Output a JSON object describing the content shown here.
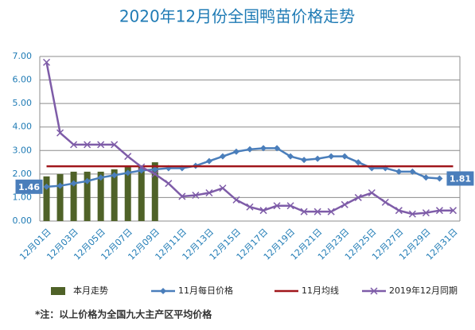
{
  "chart_data": {
    "type": "combo",
    "title": "2020年12月份全国鸭苗价格走势",
    "note": "*注：以上价格为全国九大主产区平均价格",
    "categories": [
      "12月01日",
      null,
      "12月03日",
      null,
      "12月05日",
      null,
      "12月07日",
      null,
      "12月09日",
      null,
      "12月11日",
      null,
      "12月13日",
      null,
      "12月15日",
      null,
      "12月17日",
      null,
      "12月19日",
      null,
      "12月21日",
      null,
      "12月23日",
      null,
      "12月25日",
      null,
      "12月27日",
      null,
      "12月29日",
      null,
      "12月31日"
    ],
    "ylim": [
      0,
      7
    ],
    "yticks": [
      {
        "value": 0,
        "label": "0.00"
      },
      {
        "value": 1,
        "label": "1.00"
      },
      {
        "value": 2,
        "label": "2.00"
      },
      {
        "value": 3,
        "label": "3.00"
      },
      {
        "value": 4,
        "label": "4.00"
      },
      {
        "value": 5,
        "label": "5.00"
      },
      {
        "value": 6,
        "label": "6.00"
      },
      {
        "value": 7,
        "label": "7.00"
      }
    ],
    "grid": true,
    "legend": "bottom",
    "series": [
      {
        "name": "本月走势",
        "type": "bar",
        "color": "#4f6228",
        "values": [
          1.9,
          2.0,
          2.1,
          2.1,
          2.1,
          2.2,
          2.3,
          2.35,
          2.5,
          null,
          null,
          null,
          null,
          null,
          null,
          null,
          null,
          null,
          null,
          null,
          null,
          null,
          null,
          null,
          null,
          null,
          null,
          null,
          null,
          null,
          null
        ]
      },
      {
        "name": "11月每日价格",
        "type": "line",
        "marker": "diamond",
        "color": "#4a7ebb",
        "values": [
          1.46,
          1.5,
          1.6,
          1.7,
          1.85,
          1.95,
          2.05,
          2.15,
          2.2,
          2.25,
          2.25,
          2.35,
          2.55,
          2.75,
          2.95,
          3.05,
          3.1,
          3.1,
          2.75,
          2.6,
          2.65,
          2.75,
          2.75,
          2.5,
          2.25,
          2.25,
          2.1,
          2.1,
          1.85,
          1.81,
          null
        ],
        "value_labels": [
          "1.46",
          null,
          null,
          null,
          null,
          null,
          null,
          null,
          null,
          null,
          null,
          null,
          null,
          null,
          null,
          null,
          null,
          null,
          null,
          null,
          null,
          null,
          null,
          null,
          null,
          null,
          null,
          null,
          null,
          "1.81",
          null
        ]
      },
      {
        "name": "11月均线",
        "type": "line",
        "color": "#a0161b",
        "values": [
          2.33,
          2.33,
          2.33,
          2.33,
          2.33,
          2.33,
          2.33,
          2.33,
          2.33,
          2.33,
          2.33,
          2.33,
          2.33,
          2.33,
          2.33,
          2.33,
          2.33,
          2.33,
          2.33,
          2.33,
          2.33,
          2.33,
          2.33,
          2.33,
          2.33,
          2.33,
          2.33,
          2.33,
          2.33,
          2.33,
          2.33
        ]
      },
      {
        "name": "2019年12月同期",
        "type": "line",
        "marker": "x",
        "color": "#7e5ca8",
        "values": [
          6.75,
          3.75,
          3.25,
          3.25,
          3.25,
          3.25,
          2.75,
          2.3,
          2.0,
          1.6,
          1.05,
          1.1,
          1.2,
          1.4,
          0.9,
          0.6,
          0.45,
          0.65,
          0.65,
          0.4,
          0.4,
          0.4,
          0.7,
          1.0,
          1.2,
          0.8,
          0.45,
          0.3,
          0.35,
          0.45,
          0.45
        ]
      }
    ]
  }
}
